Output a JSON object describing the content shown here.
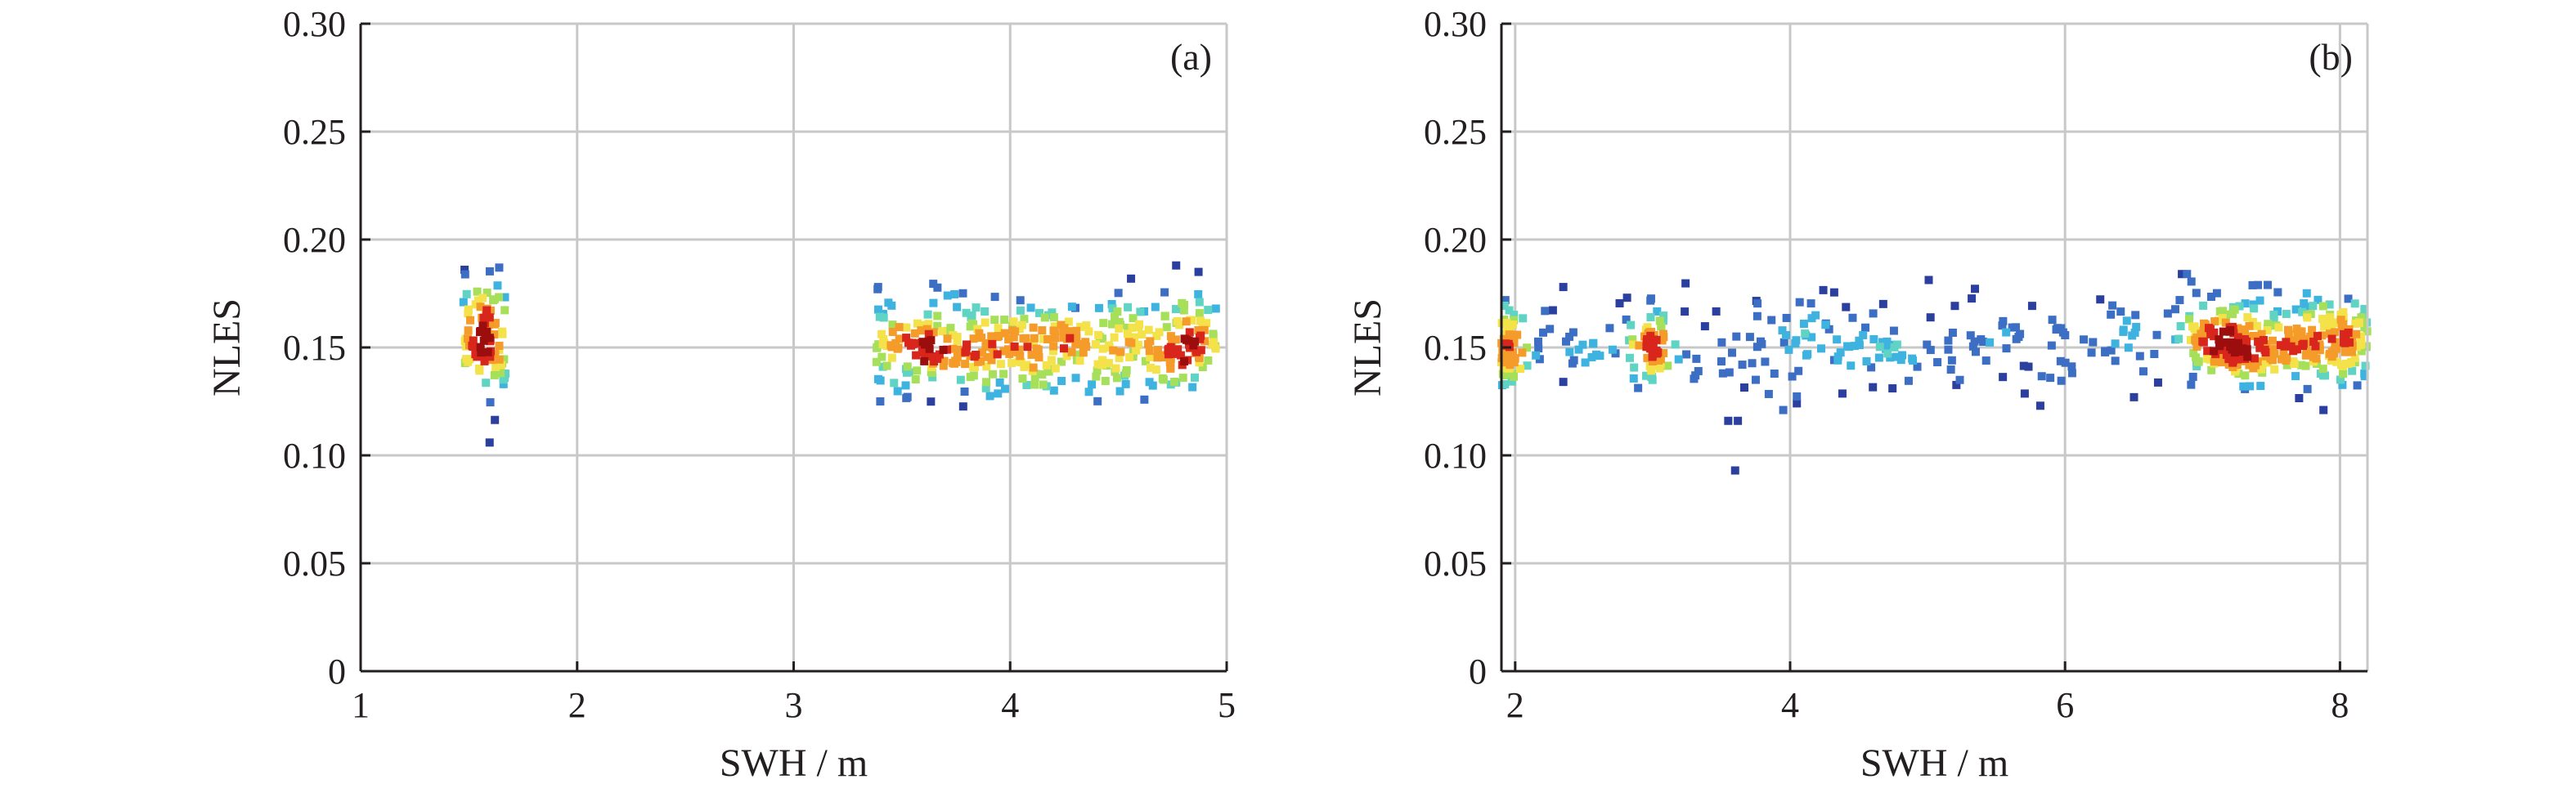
{
  "colors": {
    "grid": "#c8c8c8",
    "axis": "#231f20",
    "density_scale": [
      "#2b3f9e",
      "#3c6fc4",
      "#3fb3e0",
      "#5fd3c4",
      "#a6e05a",
      "#f3e24a",
      "#f59b2a",
      "#d8261c",
      "#9c0e0e"
    ]
  },
  "chart_data": [
    {
      "type": "scatter",
      "panel_label": "(a)",
      "xlabel": "SWH / m",
      "ylabel": "NLES",
      "xlim": [
        1,
        5
      ],
      "ylim": [
        0,
        0.3
      ],
      "xticks": [
        1,
        2,
        3,
        4,
        5
      ],
      "xtick_labels": [
        "1",
        "2",
        "3",
        "4",
        "5"
      ],
      "yticks": [
        0,
        0.05,
        0.1,
        0.15,
        0.2,
        0.25,
        0.3
      ],
      "ytick_labels": [
        "0",
        "0.05",
        "0.10",
        "0.15",
        "0.20",
        "0.25",
        "0.30"
      ],
      "grid": true,
      "color_encoding": "point density (blue = low, red = high)",
      "clusters": [
        {
          "x_range": [
            1.47,
            1.67
          ],
          "y_mean": 0.155,
          "y_spread": 0.013,
          "n": 90,
          "peak_x": 1.57,
          "peak_y": 0.155
        },
        {
          "x_range": [
            3.38,
            4.95
          ],
          "y_mean": 0.15,
          "y_spread": 0.011,
          "n": 430,
          "peak_x": 4.22,
          "peak_y": 0.151
        }
      ],
      "outliers": [
        [
          1.48,
          0.186
        ],
        [
          1.64,
          0.187
        ],
        [
          1.66,
          0.133
        ],
        [
          3.39,
          0.178
        ],
        [
          3.4,
          0.125
        ],
        [
          4.87,
          0.185
        ],
        [
          4.95,
          0.168
        ]
      ]
    },
    {
      "type": "scatter",
      "panel_label": "(b)",
      "xlabel": "SWH / m",
      "ylabel": "NLES",
      "xlim": [
        1.9,
        8.2
      ],
      "ylim": [
        0,
        0.3
      ],
      "xticks": [
        2,
        4,
        6,
        8
      ],
      "xtick_labels": [
        "2",
        "4",
        "6",
        "8"
      ],
      "yticks": [
        0,
        0.05,
        0.1,
        0.15,
        0.2,
        0.25,
        0.3
      ],
      "ytick_labels": [
        "0",
        "0.05",
        "0.10",
        "0.15",
        "0.20",
        "0.25",
        "0.30"
      ],
      "grid": true,
      "color_encoding": "point density (blue = low, red = high)",
      "clusters": [
        {
          "x_range": [
            1.9,
            2.0
          ],
          "y_mean": 0.152,
          "y_spread": 0.01,
          "n": 60,
          "peak_x": 1.93,
          "peak_y": 0.152
        },
        {
          "x_range": [
            2.95,
            3.08
          ],
          "y_mean": 0.151,
          "y_spread": 0.008,
          "n": 45,
          "peak_x": 3.02,
          "peak_y": 0.15
        },
        {
          "x_range": [
            2.0,
            7.0
          ],
          "y_mean": 0.152,
          "y_spread": 0.011,
          "n": 250,
          "peak_x": 4.5,
          "peak_y": 0.15
        },
        {
          "x_range": [
            6.9,
            8.2
          ],
          "y_mean": 0.152,
          "y_spread": 0.01,
          "n": 320,
          "peak_x": 8.15,
          "peak_y": 0.155
        }
      ],
      "outliers": [
        [
          3.55,
          0.116
        ],
        [
          3.62,
          0.116
        ],
        [
          3.6,
          0.093
        ],
        [
          3.95,
          0.121
        ],
        [
          3.75,
          0.135
        ],
        [
          6.85,
          0.184
        ],
        [
          7.88,
          0.121
        ],
        [
          2.35,
          0.178
        ],
        [
          5.82,
          0.123
        ]
      ]
    }
  ]
}
